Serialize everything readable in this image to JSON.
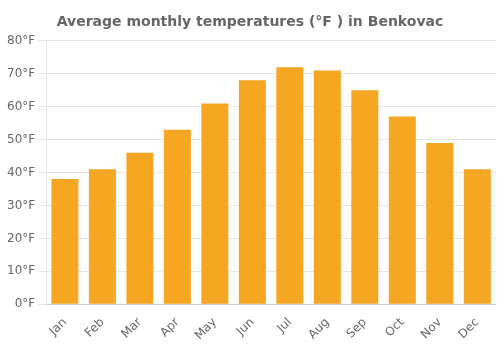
{
  "chart_data": {
    "type": "bar",
    "title": "Average monthly temperatures (°F ) in Benkovac",
    "categories": [
      "Jan",
      "Feb",
      "Mar",
      "Apr",
      "May",
      "Jun",
      "Jul",
      "Aug",
      "Sep",
      "Oct",
      "Nov",
      "Dec"
    ],
    "values": [
      38,
      41,
      46,
      53,
      61,
      68,
      72,
      71,
      65,
      57,
      49,
      41
    ],
    "color": "#F5A623",
    "ylim": [
      0,
      80
    ],
    "yticks": [
      {
        "value": 0,
        "label": "0°F"
      },
      {
        "value": 10,
        "label": "10°F"
      },
      {
        "value": 20,
        "label": "20°F"
      },
      {
        "value": 30,
        "label": "30°F"
      },
      {
        "value": 40,
        "label": "40°F"
      },
      {
        "value": 50,
        "label": "50°F"
      },
      {
        "value": 60,
        "label": "60°F"
      },
      {
        "value": 70,
        "label": "70°F"
      },
      {
        "value": 80,
        "label": "80°F"
      }
    ],
    "grid": true
  }
}
